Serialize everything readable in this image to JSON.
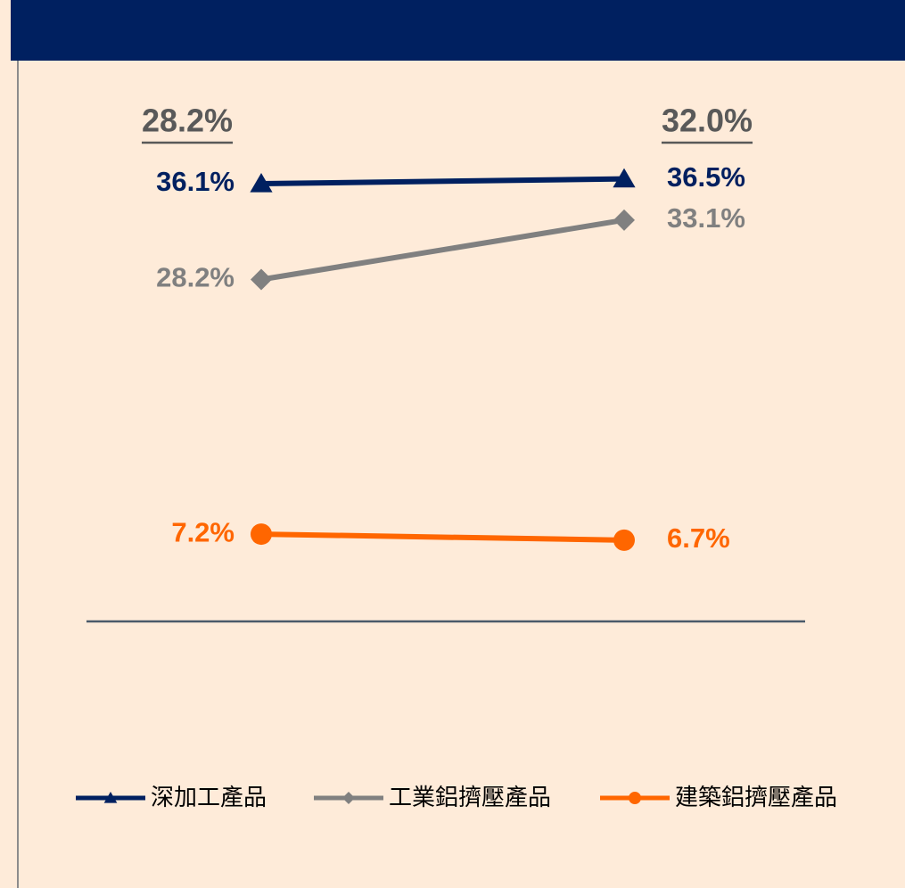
{
  "chart_data": {
    "type": "line",
    "categories": [
      null,
      null
    ],
    "annotations": [
      "28.2%",
      "32.0%"
    ],
    "ylim": [
      0,
      50
    ],
    "series": [
      {
        "name": "深加工產品",
        "color": "#002060",
        "marker": "triangle",
        "values": [
          36.1,
          36.5
        ],
        "value_labels": [
          "36.1%",
          "36.5%"
        ]
      },
      {
        "name": "工業鋁擠壓產品",
        "color": "#808080",
        "marker": "diamond",
        "values": [
          28.2,
          33.1
        ],
        "value_labels": [
          "28.2%",
          "33.1%"
        ]
      },
      {
        "name": "建築鋁擠壓產品",
        "color": "#FF6600",
        "marker": "circle",
        "values": [
          7.2,
          6.7
        ],
        "value_labels": [
          "7.2%",
          "6.7%"
        ]
      }
    ]
  }
}
